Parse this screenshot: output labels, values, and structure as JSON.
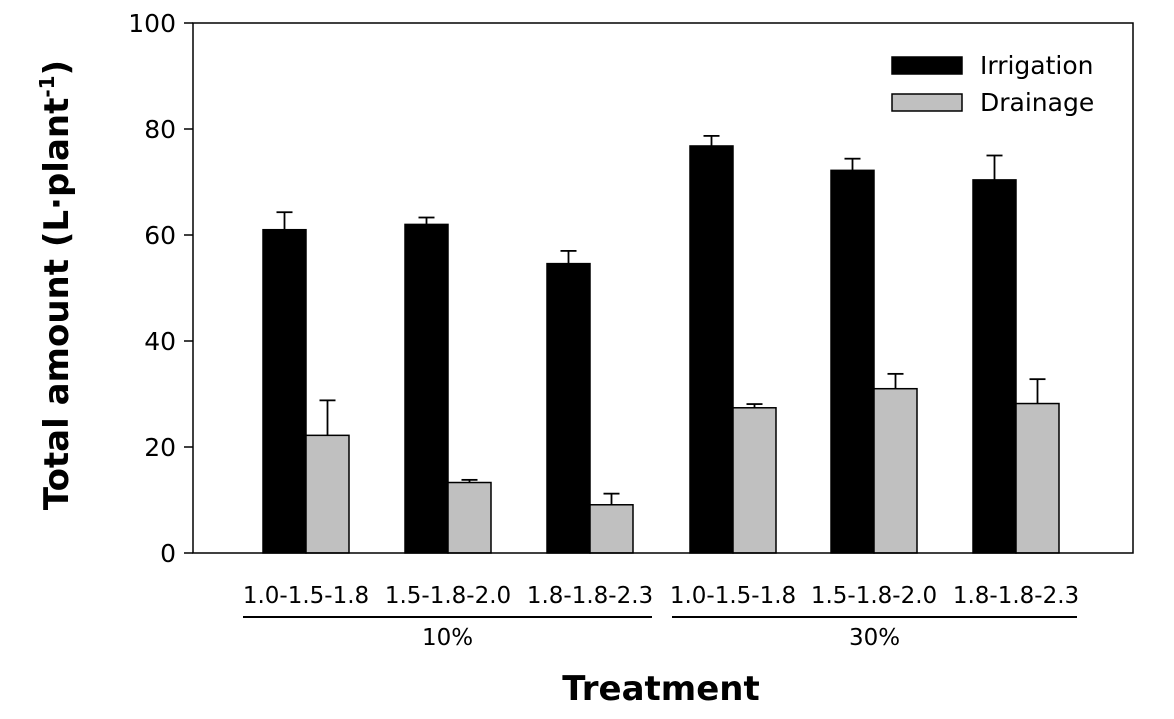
{
  "chart_data": {
    "type": "bar",
    "title": "",
    "xlabel": "Treatment",
    "ylabel": "Total amount (L·plant",
    "ylabel_sup": "-1",
    "ylabel_close": ")",
    "ylim": [
      0,
      100
    ],
    "yticks": [
      0,
      20,
      40,
      60,
      80,
      100
    ],
    "grid": false,
    "legend_position": "top-right",
    "categories": [
      "1.0-1.5-1.8",
      "1.5-1.8-2.0",
      "1.8-1.8-2.3",
      "1.0-1.5-1.8",
      "1.5-1.8-2.0",
      "1.8-1.8-2.3"
    ],
    "groups": [
      {
        "label": "10%",
        "categories": [
          0,
          1,
          2
        ]
      },
      {
        "label": "30%",
        "categories": [
          3,
          4,
          5
        ]
      }
    ],
    "series": [
      {
        "name": "Irrigation",
        "color": "#000000",
        "values": [
          61.0,
          62.0,
          54.6,
          76.8,
          72.2,
          70.4
        ],
        "errors": [
          3.3,
          1.3,
          2.4,
          1.9,
          2.2,
          4.6
        ]
      },
      {
        "name": "Drainage",
        "color": "#c0c0c0",
        "values": [
          22.2,
          13.3,
          9.1,
          27.4,
          31.0,
          28.2
        ],
        "errors": [
          6.6,
          0.5,
          2.1,
          0.7,
          2.8,
          4.6
        ]
      }
    ]
  }
}
